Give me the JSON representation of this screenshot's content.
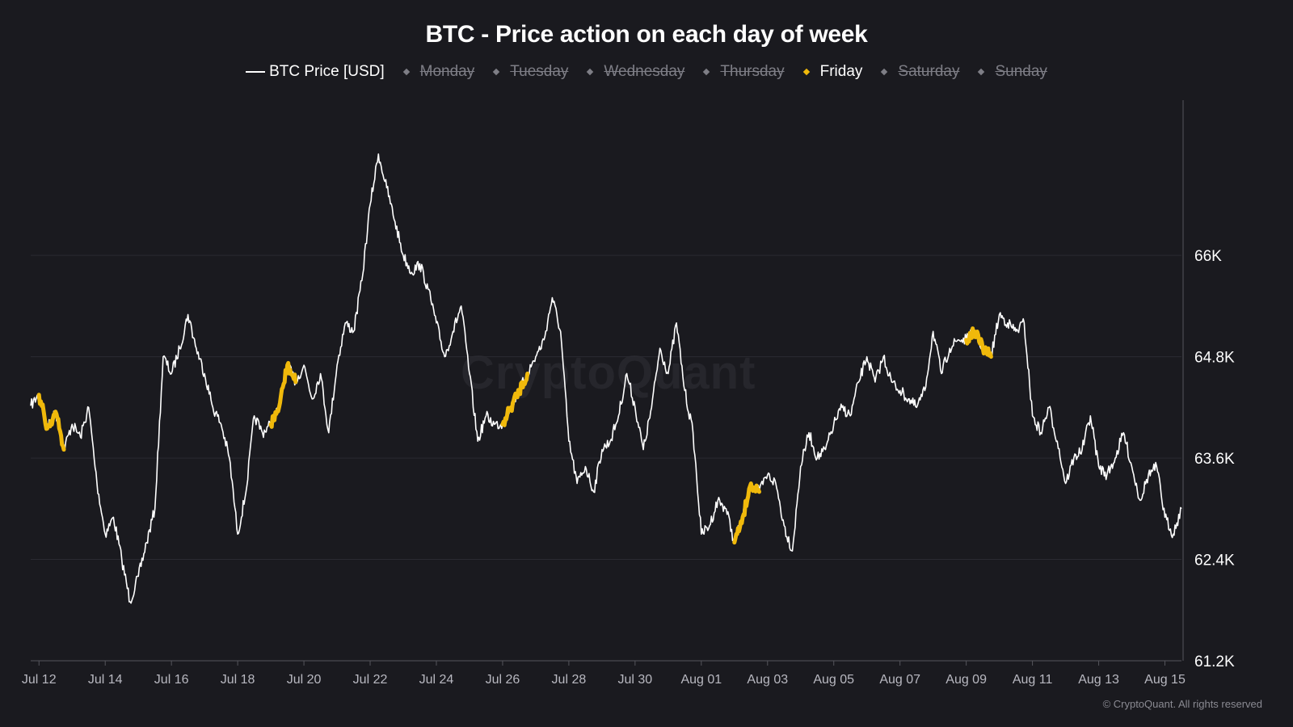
{
  "title": "BTC - Price action on each day of week",
  "watermark": "CryptoQuant",
  "copyright": "© CryptoQuant. All rights reserved",
  "legend": [
    {
      "label": "BTC Price [USD]",
      "marker": "line",
      "active": true,
      "color": "#ffffff"
    },
    {
      "label": "Monday",
      "marker": "diamond",
      "active": false
    },
    {
      "label": "Tuesday",
      "marker": "diamond",
      "active": false
    },
    {
      "label": "Wednesday",
      "marker": "diamond",
      "active": false
    },
    {
      "label": "Thursday",
      "marker": "diamond",
      "active": false
    },
    {
      "label": "Friday",
      "marker": "diamond",
      "active": true,
      "color": "#f0b90b"
    },
    {
      "label": "Saturday",
      "marker": "diamond",
      "active": false
    },
    {
      "label": "Sunday",
      "marker": "diamond",
      "active": false
    }
  ],
  "chart_data": {
    "type": "line",
    "title": "BTC - Price action on each day of week",
    "xlabel": "",
    "ylabel": "",
    "y_axis_side": "right",
    "ylim": [
      61200,
      67800
    ],
    "y_ticks": [
      61200,
      62400,
      63600,
      64800,
      66000
    ],
    "y_tick_labels": [
      "61.2K",
      "62.4K",
      "63.6K",
      "64.8K",
      "66K"
    ],
    "x_ticks": [
      "2024-07-12",
      "2024-07-14",
      "2024-07-16",
      "2024-07-18",
      "2024-07-20",
      "2024-07-22",
      "2024-07-24",
      "2024-07-26",
      "2024-07-28",
      "2024-07-30",
      "2024-08-01",
      "2024-08-03",
      "2024-08-05",
      "2024-08-07",
      "2024-08-09",
      "2024-08-11",
      "2024-08-13",
      "2024-08-15"
    ],
    "x_tick_labels": [
      "Jul 12",
      "Jul 14",
      "Jul 16",
      "Jul 18",
      "Jul 20",
      "Jul 22",
      "Jul 24",
      "Jul 26",
      "Jul 28",
      "Jul 30",
      "Aug 01",
      "Aug 03",
      "Aug 05",
      "Aug 07",
      "Aug 09",
      "Aug 11",
      "Aug 13",
      "Aug 15"
    ],
    "xlim": [
      "2024-07-11 18:00",
      "2024-08-15 12:00"
    ],
    "grid": "horizontal",
    "legend_position": "top-center",
    "series": [
      {
        "name": "BTC Price [USD]",
        "color": "#ffffff",
        "points": [
          [
            "2024-07-11 18:00",
            64220
          ],
          [
            "2024-07-12 00:00",
            64350
          ],
          [
            "2024-07-12 06:00",
            63950
          ],
          [
            "2024-07-12 12:00",
            64150
          ],
          [
            "2024-07-12 18:00",
            63700
          ],
          [
            "2024-07-13 00:00",
            64000
          ],
          [
            "2024-07-13 06:00",
            63850
          ],
          [
            "2024-07-13 12:00",
            64200
          ],
          [
            "2024-07-13 18:00",
            63300
          ],
          [
            "2024-07-14 00:00",
            62700
          ],
          [
            "2024-07-14 06:00",
            62900
          ],
          [
            "2024-07-14 12:00",
            62400
          ],
          [
            "2024-07-14 18:00",
            61900
          ],
          [
            "2024-07-15 00:00",
            62200
          ],
          [
            "2024-07-15 06:00",
            62600
          ],
          [
            "2024-07-15 12:00",
            63000
          ],
          [
            "2024-07-15 18:00",
            64800
          ],
          [
            "2024-07-16 00:00",
            64600
          ],
          [
            "2024-07-16 06:00",
            64900
          ],
          [
            "2024-07-16 12:00",
            65300
          ],
          [
            "2024-07-16 18:00",
            64900
          ],
          [
            "2024-07-17 00:00",
            64600
          ],
          [
            "2024-07-17 06:00",
            64200
          ],
          [
            "2024-07-17 12:00",
            64000
          ],
          [
            "2024-07-17 18:00",
            63600
          ],
          [
            "2024-07-18 00:00",
            62700
          ],
          [
            "2024-07-18 06:00",
            63200
          ],
          [
            "2024-07-18 12:00",
            64100
          ],
          [
            "2024-07-18 18:00",
            63900
          ],
          [
            "2024-07-19 00:00",
            64000
          ],
          [
            "2024-07-19 06:00",
            64200
          ],
          [
            "2024-07-19 12:00",
            64700
          ],
          [
            "2024-07-19 18:00",
            64500
          ],
          [
            "2024-07-20 00:00",
            64700
          ],
          [
            "2024-07-20 06:00",
            64300
          ],
          [
            "2024-07-20 12:00",
            64600
          ],
          [
            "2024-07-20 18:00",
            63900
          ],
          [
            "2024-07-21 00:00",
            64700
          ],
          [
            "2024-07-21 06:00",
            65200
          ],
          [
            "2024-07-21 12:00",
            65100
          ],
          [
            "2024-07-21 18:00",
            65700
          ],
          [
            "2024-07-22 00:00",
            66600
          ],
          [
            "2024-07-22 06:00",
            67200
          ],
          [
            "2024-07-22 12:00",
            66800
          ],
          [
            "2024-07-22 18:00",
            66400
          ],
          [
            "2024-07-23 00:00",
            66000
          ],
          [
            "2024-07-23 06:00",
            65800
          ],
          [
            "2024-07-23 12:00",
            65900
          ],
          [
            "2024-07-23 18:00",
            65600
          ],
          [
            "2024-07-24 00:00",
            65200
          ],
          [
            "2024-07-24 06:00",
            64800
          ],
          [
            "2024-07-24 12:00",
            65100
          ],
          [
            "2024-07-24 18:00",
            65400
          ],
          [
            "2024-07-25 00:00",
            64600
          ],
          [
            "2024-07-25 06:00",
            63800
          ],
          [
            "2024-07-25 12:00",
            64100
          ],
          [
            "2024-07-25 18:00",
            64000
          ],
          [
            "2024-07-26 00:00",
            64000
          ],
          [
            "2024-07-26 06:00",
            64200
          ],
          [
            "2024-07-26 12:00",
            64400
          ],
          [
            "2024-07-26 18:00",
            64600
          ],
          [
            "2024-07-27 00:00",
            64800
          ],
          [
            "2024-07-27 06:00",
            65000
          ],
          [
            "2024-07-27 12:00",
            65500
          ],
          [
            "2024-07-27 18:00",
            65100
          ],
          [
            "2024-07-28 00:00",
            63800
          ],
          [
            "2024-07-28 06:00",
            63300
          ],
          [
            "2024-07-28 12:00",
            63500
          ],
          [
            "2024-07-28 18:00",
            63200
          ],
          [
            "2024-07-29 00:00",
            63700
          ],
          [
            "2024-07-29 06:00",
            63800
          ],
          [
            "2024-07-29 12:00",
            64100
          ],
          [
            "2024-07-29 18:00",
            64600
          ],
          [
            "2024-07-30 00:00",
            64200
          ],
          [
            "2024-07-30 06:00",
            63700
          ],
          [
            "2024-07-30 12:00",
            64200
          ],
          [
            "2024-07-30 18:00",
            64900
          ],
          [
            "2024-07-31 00:00",
            64600
          ],
          [
            "2024-07-31 06:00",
            65200
          ],
          [
            "2024-07-31 12:00",
            64400
          ],
          [
            "2024-07-31 18:00",
            63900
          ],
          [
            "2024-08-01 00:00",
            62700
          ],
          [
            "2024-08-01 06:00",
            62800
          ],
          [
            "2024-08-01 12:00",
            63100
          ],
          [
            "2024-08-01 18:00",
            63000
          ],
          [
            "2024-08-02 00:00",
            62600
          ],
          [
            "2024-08-02 06:00",
            62900
          ],
          [
            "2024-08-02 12:00",
            63300
          ],
          [
            "2024-08-02 18:00",
            63200
          ],
          [
            "2024-08-03 00:00",
            63400
          ],
          [
            "2024-08-03 06:00",
            63300
          ],
          [
            "2024-08-03 12:00",
            62800
          ],
          [
            "2024-08-03 18:00",
            62500
          ],
          [
            "2024-08-04 00:00",
            63500
          ],
          [
            "2024-08-04 06:00",
            63900
          ],
          [
            "2024-08-04 12:00",
            63600
          ],
          [
            "2024-08-04 18:00",
            63700
          ],
          [
            "2024-08-05 00:00",
            64000
          ],
          [
            "2024-08-05 06:00",
            64200
          ],
          [
            "2024-08-05 12:00",
            64100
          ],
          [
            "2024-08-05 18:00",
            64500
          ],
          [
            "2024-08-06 00:00",
            64800
          ],
          [
            "2024-08-06 06:00",
            64500
          ],
          [
            "2024-08-06 12:00",
            64800
          ],
          [
            "2024-08-06 18:00",
            64500
          ],
          [
            "2024-08-07 00:00",
            64400
          ],
          [
            "2024-08-07 06:00",
            64300
          ],
          [
            "2024-08-07 12:00",
            64200
          ],
          [
            "2024-08-07 18:00",
            64400
          ],
          [
            "2024-08-08 00:00",
            65100
          ],
          [
            "2024-08-08 06:00",
            64600
          ],
          [
            "2024-08-08 12:00",
            64900
          ],
          [
            "2024-08-08 18:00",
            65000
          ],
          [
            "2024-08-09 00:00",
            65000
          ],
          [
            "2024-08-09 06:00",
            65100
          ],
          [
            "2024-08-09 12:00",
            64900
          ],
          [
            "2024-08-09 18:00",
            64800
          ],
          [
            "2024-08-10 00:00",
            65300
          ],
          [
            "2024-08-10 06:00",
            65200
          ],
          [
            "2024-08-10 12:00",
            65100
          ],
          [
            "2024-08-10 18:00",
            65200
          ],
          [
            "2024-08-11 00:00",
            64100
          ],
          [
            "2024-08-11 06:00",
            63900
          ],
          [
            "2024-08-11 12:00",
            64200
          ],
          [
            "2024-08-11 18:00",
            63800
          ],
          [
            "2024-08-12 00:00",
            63300
          ],
          [
            "2024-08-12 06:00",
            63600
          ],
          [
            "2024-08-12 12:00",
            63700
          ],
          [
            "2024-08-12 18:00",
            64100
          ],
          [
            "2024-08-13 00:00",
            63500
          ],
          [
            "2024-08-13 06:00",
            63400
          ],
          [
            "2024-08-13 12:00",
            63600
          ],
          [
            "2024-08-13 18:00",
            63900
          ],
          [
            "2024-08-14 00:00",
            63500
          ],
          [
            "2024-08-14 06:00",
            63100
          ],
          [
            "2024-08-14 12:00",
            63400
          ],
          [
            "2024-08-14 18:00",
            63500
          ],
          [
            "2024-08-15 00:00",
            62900
          ],
          [
            "2024-08-15 06:00",
            62700
          ],
          [
            "2024-08-15 12:00",
            63000
          ]
        ]
      },
      {
        "name": "Friday",
        "color": "#f0b90b",
        "segments": [
          [
            [
              "2024-07-12 00:00",
              64350
            ],
            [
              "2024-07-12 06:00",
              63950
            ],
            [
              "2024-07-12 12:00",
              64150
            ],
            [
              "2024-07-12 18:00",
              63700
            ]
          ],
          [
            [
              "2024-07-19 00:00",
              64000
            ],
            [
              "2024-07-19 06:00",
              64200
            ],
            [
              "2024-07-19 12:00",
              64700
            ],
            [
              "2024-07-19 18:00",
              64500
            ]
          ],
          [
            [
              "2024-07-26 00:00",
              64000
            ],
            [
              "2024-07-26 06:00",
              64200
            ],
            [
              "2024-07-26 12:00",
              64400
            ],
            [
              "2024-07-26 18:00",
              64600
            ]
          ],
          [
            [
              "2024-08-02 00:00",
              62600
            ],
            [
              "2024-08-02 06:00",
              62900
            ],
            [
              "2024-08-02 12:00",
              63300
            ],
            [
              "2024-08-02 18:00",
              63200
            ]
          ],
          [
            [
              "2024-08-09 00:00",
              65000
            ],
            [
              "2024-08-09 06:00",
              65100
            ],
            [
              "2024-08-09 12:00",
              64900
            ],
            [
              "2024-08-09 18:00",
              64800
            ]
          ]
        ]
      }
    ]
  }
}
